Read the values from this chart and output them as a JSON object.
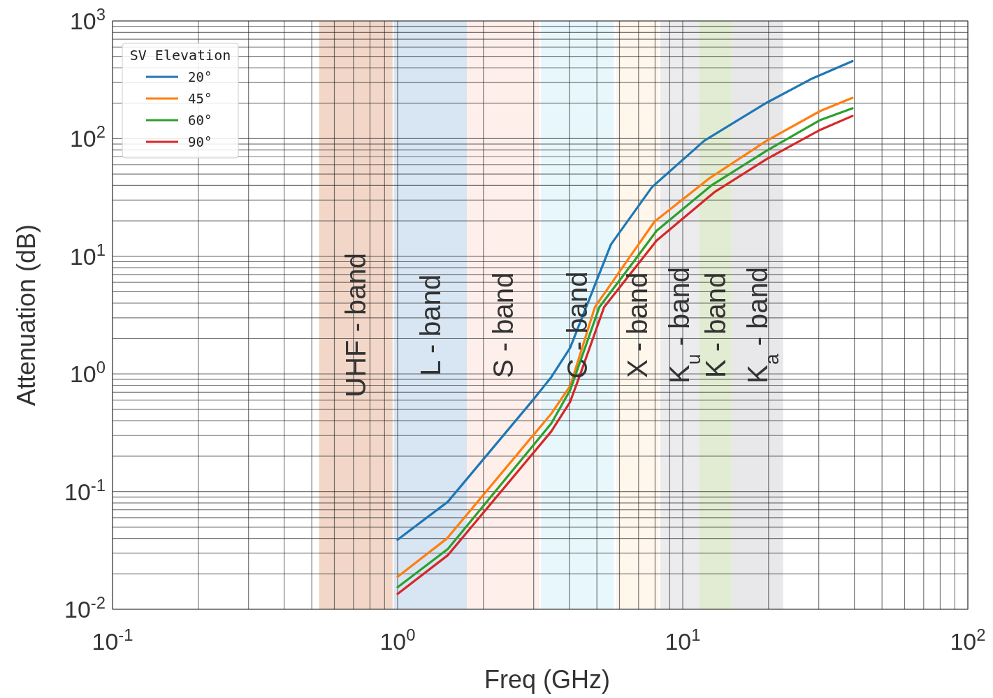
{
  "chart_data": {
    "type": "line",
    "xlabel": "Freq (GHz)",
    "ylabel": "Attenuation (dB)",
    "legend_title": "SV Elevation",
    "legend": "top left",
    "grid": true,
    "log": "xy",
    "line_style": "solid",
    "marker": "none",
    "xlim": [
      0.1,
      100
    ],
    "ylim": [
      0.01,
      1000
    ],
    "xticks": [
      {
        "value": 0.1,
        "label": "10$^{-1}$"
      },
      {
        "value": 0.2,
        "label": null
      },
      {
        "value": 0.3,
        "label": null
      },
      {
        "value": 0.4,
        "label": null
      },
      {
        "value": 0.5,
        "label": null
      },
      {
        "value": 0.6,
        "label": null
      },
      {
        "value": 0.7,
        "label": null
      },
      {
        "value": 0.8,
        "label": null
      },
      {
        "value": 0.9,
        "label": null
      },
      {
        "value": 1,
        "label": "10$^{0}$"
      },
      {
        "value": 2,
        "label": null
      },
      {
        "value": 3,
        "label": null
      },
      {
        "value": 4,
        "label": null
      },
      {
        "value": 5,
        "label": null
      },
      {
        "value": 6,
        "label": null
      },
      {
        "value": 7,
        "label": null
      },
      {
        "value": 8,
        "label": null
      },
      {
        "value": 9,
        "label": null
      },
      {
        "value": 10,
        "label": "10$^{1}$"
      },
      {
        "value": 20,
        "label": null
      },
      {
        "value": 30,
        "label": null
      },
      {
        "value": 40,
        "label": null
      },
      {
        "value": 50,
        "label": null
      },
      {
        "value": 60,
        "label": null
      },
      {
        "value": 70,
        "label": null
      },
      {
        "value": 80,
        "label": null
      },
      {
        "value": 90,
        "label": null
      },
      {
        "value": 100,
        "label": "10$^{2}$"
      }
    ],
    "yticks": [
      {
        "value": 0.01,
        "label": "10$^{-2}$"
      },
      {
        "value": 0.02,
        "label": null
      },
      {
        "value": 0.03,
        "label": null
      },
      {
        "value": 0.04,
        "label": null
      },
      {
        "value": 0.05,
        "label": null
      },
      {
        "value": 0.06,
        "label": null
      },
      {
        "value": 0.07,
        "label": null
      },
      {
        "value": 0.08,
        "label": null
      },
      {
        "value": 0.09,
        "label": null
      },
      {
        "value": 0.1,
        "label": "10$^{-1}$"
      },
      {
        "value": 0.2,
        "label": null
      },
      {
        "value": 0.3,
        "label": null
      },
      {
        "value": 0.4,
        "label": null
      },
      {
        "value": 0.5,
        "label": null
      },
      {
        "value": 0.6,
        "label": null
      },
      {
        "value": 0.7,
        "label": null
      },
      {
        "value": 0.8,
        "label": null
      },
      {
        "value": 0.9,
        "label": null
      },
      {
        "value": 1,
        "label": "10$^{0}$"
      },
      {
        "value": 2,
        "label": null
      },
      {
        "value": 3,
        "label": null
      },
      {
        "value": 4,
        "label": null
      },
      {
        "value": 5,
        "label": null
      },
      {
        "value": 6,
        "label": null
      },
      {
        "value": 7,
        "label": null
      },
      {
        "value": 8,
        "label": null
      },
      {
        "value": 9,
        "label": null
      },
      {
        "value": 10,
        "label": "10$^{1}$"
      },
      {
        "value": 20,
        "label": null
      },
      {
        "value": 30,
        "label": null
      },
      {
        "value": 40,
        "label": null
      },
      {
        "value": 50,
        "label": null
      },
      {
        "value": 60,
        "label": null
      },
      {
        "value": 70,
        "label": null
      },
      {
        "value": 80,
        "label": null
      },
      {
        "value": 90,
        "label": null
      },
      {
        "value": 100,
        "label": "10$^{2}$"
      },
      {
        "value": 200,
        "label": null
      },
      {
        "value": 300,
        "label": null
      },
      {
        "value": 400,
        "label": null
      },
      {
        "value": 500,
        "label": null
      },
      {
        "value": 600,
        "label": null
      },
      {
        "value": 700,
        "label": null
      },
      {
        "value": 800,
        "label": null
      },
      {
        "value": 900,
        "label": null
      },
      {
        "value": 1000,
        "label": "10$^{3}$"
      }
    ],
    "bands": [
      {
        "axis": "x",
        "from": 0.53,
        "to": 0.96,
        "label": "UHF - band",
        "color": "#f2d7c9"
      },
      {
        "axis": "x",
        "from": 0.97,
        "to": 1.75,
        "label": "L - band",
        "color": "#d8e5f3"
      },
      {
        "axis": "x",
        "from": 1.75,
        "to": 3.15,
        "label": "S - band",
        "color": "#feefeb"
      },
      {
        "axis": "x",
        "from": 3.18,
        "to": 5.74,
        "label": "C - band",
        "color": "#e8f7fc"
      },
      {
        "axis": "x",
        "from": 5.84,
        "to": 8.24,
        "label": "X - band",
        "color": "#fff6ec"
      },
      {
        "axis": "x",
        "from": 8.33,
        "to": 11.4,
        "label": "K$_{u}$ - band",
        "color": "#ececef"
      },
      {
        "axis": "x",
        "from": 11.4,
        "to": 14.9,
        "label": "K - band",
        "color": "#e2ecd2"
      },
      {
        "axis": "x",
        "from": 14.9,
        "to": 22.5,
        "label": "K$_{a}$ - band",
        "color": "#e8e8eb"
      }
    ],
    "series": [
      {
        "name": "20°",
        "color": "#1f77b4",
        "x": [
          1,
          1.5,
          3,
          3.46,
          4.03,
          4.75,
          5.6,
          7.8,
          11.9,
          19.7,
          28.5,
          39.4
        ],
        "values": [
          0.039,
          0.082,
          0.61,
          0.94,
          1.67,
          4.6,
          12.6,
          38.7,
          96,
          202,
          325,
          456
        ]
      },
      {
        "name": "45°",
        "color": "#ff7f0e",
        "x": [
          1,
          1.49,
          3.46,
          4.03,
          4.92,
          6.37,
          7.96,
          12.4,
          19.7,
          30.4,
          39.4
        ],
        "values": [
          0.0189,
          0.04,
          0.46,
          0.79,
          3.7,
          9.1,
          19.7,
          46,
          96,
          172,
          222
        ]
      },
      {
        "name": "60°",
        "color": "#2ca02c",
        "x": [
          1,
          1.5,
          3.46,
          4.03,
          5.1,
          6.75,
          8.1,
          12.6,
          19.7,
          30.4,
          39.4
        ],
        "values": [
          0.0154,
          0.0325,
          0.38,
          0.73,
          3.7,
          9.1,
          16.5,
          40,
          79,
          144,
          181
        ]
      },
      {
        "name": "90°",
        "color": "#d62728",
        "x": [
          1,
          1.5,
          3.46,
          4.03,
          4.4,
          5.3,
          7.0,
          8.1,
          12.9,
          19.7,
          30.4,
          39.4
        ],
        "values": [
          0.0135,
          0.0288,
          0.325,
          0.58,
          1.04,
          3.7,
          8.7,
          13.6,
          35,
          67,
          119,
          156
        ]
      }
    ]
  }
}
